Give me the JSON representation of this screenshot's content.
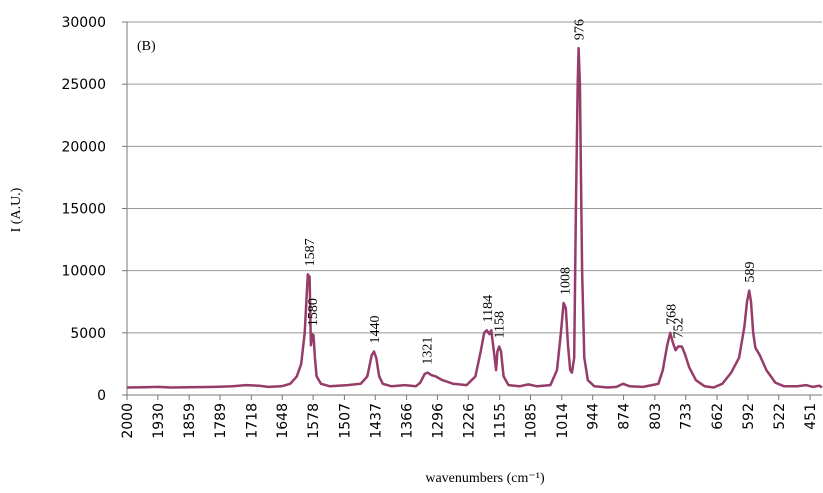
{
  "chart_data": {
    "type": "line",
    "panel_label": "(B)",
    "x_label": "wavenumbers (cm⁻¹)",
    "y_label": "I (A.U.)",
    "xlim": [
      2000,
      424
    ],
    "ylim": [
      0,
      30000
    ],
    "xticks": [
      2000,
      1930,
      1859,
      1789,
      1718,
      1648,
      1578,
      1507,
      1437,
      1366,
      1296,
      1226,
      1155,
      1085,
      1014,
      944,
      874,
      803,
      733,
      662,
      592,
      522,
      451
    ],
    "yticks": [
      0,
      5000,
      10000,
      15000,
      20000,
      25000,
      30000
    ],
    "grid": true,
    "peak_labels": [
      1587,
      1580,
      1440,
      1321,
      1184,
      1158,
      1008,
      976,
      768,
      752,
      589
    ],
    "series": [
      {
        "color": "#953c6a",
        "x": [
          2000,
          1960,
          1930,
          1900,
          1860,
          1800,
          1760,
          1730,
          1700,
          1680,
          1650,
          1630,
          1615,
          1605,
          1597,
          1590,
          1586,
          1583,
          1580,
          1577,
          1574,
          1570,
          1560,
          1540,
          1500,
          1470,
          1455,
          1445,
          1440,
          1435,
          1428,
          1420,
          1400,
          1370,
          1345,
          1335,
          1325,
          1318,
          1310,
          1300,
          1285,
          1260,
          1230,
          1210,
          1198,
          1190,
          1184,
          1178,
          1174,
          1168,
          1163,
          1160,
          1156,
          1152,
          1146,
          1135,
          1110,
          1090,
          1070,
          1040,
          1025,
          1016,
          1010,
          1005,
          1000,
          995,
          991,
          986,
          982,
          978,
          976,
          973,
          968,
          963,
          955,
          940,
          910,
          890,
          875,
          860,
          830,
          810,
          795,
          785,
          775,
          768,
          762,
          756,
          750,
          742,
          735,
          725,
          710,
          690,
          670,
          650,
          630,
          612,
          600,
          594,
          589,
          585,
          580,
          575,
          565,
          550,
          530,
          510,
          480,
          460,
          445,
          430,
          424
        ],
        "values": [
          600,
          620,
          650,
          600,
          620,
          650,
          700,
          800,
          750,
          650,
          700,
          900,
          1500,
          2500,
          5000,
          9700,
          9500,
          4000,
          4900,
          4800,
          3000,
          1500,
          900,
          700,
          800,
          900,
          1500,
          3200,
          3500,
          3000,
          1500,
          900,
          700,
          800,
          700,
          1000,
          1700,
          1800,
          1600,
          1500,
          1200,
          900,
          800,
          1500,
          3500,
          5000,
          5200,
          4900,
          5200,
          3500,
          2000,
          3500,
          3900,
          3500,
          1500,
          800,
          700,
          850,
          700,
          800,
          2000,
          5000,
          7400,
          7000,
          4000,
          2000,
          1800,
          3000,
          15000,
          25000,
          27900,
          25000,
          10000,
          3000,
          1200,
          700,
          600,
          650,
          900,
          700,
          650,
          800,
          900,
          2000,
          4000,
          5000,
          4200,
          3600,
          3900,
          3900,
          3300,
          2200,
          1200,
          700,
          600,
          900,
          1800,
          3000,
          5500,
          7500,
          8400,
          7500,
          5000,
          3800,
          3200,
          2000,
          1000,
          700,
          700,
          800,
          650,
          750,
          600
        ]
      }
    ]
  }
}
